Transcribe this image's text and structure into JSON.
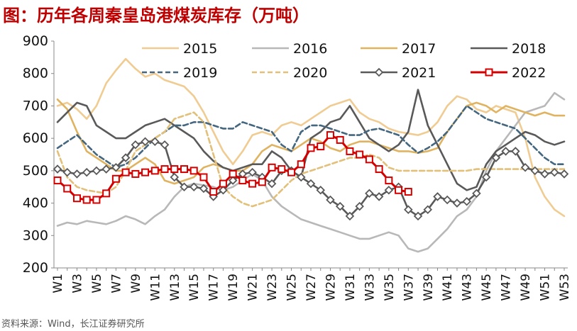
{
  "title": "图：历年各周秦皇岛港煤炭库存（万吨）",
  "source": "资料来源：Wind，长江证券研究所",
  "chart_data": {
    "type": "line",
    "title": "图：历年各周秦皇岛港煤炭库存（万吨）",
    "xlabel": "",
    "ylabel": "",
    "ylim": [
      200,
      900
    ],
    "yticks": [
      200,
      300,
      400,
      500,
      600,
      700,
      800,
      900
    ],
    "x": [
      "W1",
      "W2",
      "W3",
      "W4",
      "W5",
      "W6",
      "W7",
      "W8",
      "W9",
      "W10",
      "W11",
      "W12",
      "W13",
      "W14",
      "W15",
      "W16",
      "W17",
      "W18",
      "W19",
      "W20",
      "W21",
      "W22",
      "W23",
      "W24",
      "W25",
      "W26",
      "W27",
      "W28",
      "W29",
      "W30",
      "W31",
      "W32",
      "W33",
      "W34",
      "W35",
      "W36",
      "W37",
      "W38",
      "W39",
      "W40",
      "W41",
      "W42",
      "W43",
      "W44",
      "W45",
      "W46",
      "W47",
      "W48",
      "W49",
      "W50",
      "W51",
      "W52",
      "W53"
    ],
    "xtick_labels": [
      "W1",
      "W3",
      "W5",
      "W7",
      "W9",
      "W11",
      "W13",
      "W15",
      "W17",
      "W19",
      "W21",
      "W23",
      "W25",
      "W27",
      "W29",
      "W31",
      "W33",
      "W35",
      "W37",
      "W39",
      "W41",
      "W43",
      "W45",
      "W47",
      "W49",
      "W51",
      "W53"
    ],
    "grid": false,
    "legend_position": "top",
    "series": [
      {
        "name": "2015",
        "color": "#f0cc92",
        "dash": "solid",
        "marker": "none",
        "values": [
          700,
          710,
          690,
          660,
          700,
          770,
          810,
          845,
          815,
          790,
          800,
          780,
          770,
          760,
          730,
          680,
          620,
          560,
          520,
          560,
          610,
          620,
          610,
          640,
          650,
          640,
          660,
          680,
          700,
          710,
          720,
          680,
          660,
          650,
          630,
          620,
          615,
          610,
          620,
          650,
          700,
          730,
          720,
          690,
          680,
          700,
          690,
          680,
          600,
          480,
          420,
          380,
          360
        ]
      },
      {
        "name": "2016",
        "color": "#b8b8b8",
        "dash": "solid",
        "marker": "none",
        "values": [
          330,
          340,
          335,
          345,
          340,
          335,
          345,
          360,
          350,
          335,
          360,
          380,
          420,
          450,
          460,
          455,
          450,
          440,
          450,
          470,
          490,
          470,
          420,
          390,
          370,
          350,
          340,
          330,
          320,
          310,
          300,
          290,
          290,
          300,
          310,
          300,
          260,
          250,
          260,
          290,
          320,
          360,
          380,
          420,
          500,
          560,
          600,
          640,
          680,
          690,
          700,
          740,
          720
        ]
      },
      {
        "name": "2017",
        "color": "#e0b360",
        "dash": "solid",
        "marker": "none",
        "values": [
          720,
          690,
          620,
          560,
          540,
          520,
          500,
          500,
          520,
          540,
          520,
          470,
          460,
          470,
          480,
          510,
          520,
          510,
          500,
          500,
          520,
          560,
          580,
          570,
          560,
          580,
          600,
          590,
          570,
          560,
          580,
          590,
          590,
          580,
          570,
          560,
          560,
          555,
          560,
          570,
          620,
          660,
          700,
          710,
          700,
          680,
          700,
          690,
          680,
          670,
          680,
          670,
          670
        ]
      },
      {
        "name": "2018",
        "color": "#595959",
        "dash": "solid",
        "marker": "none",
        "values": [
          650,
          680,
          710,
          700,
          640,
          620,
          600,
          600,
          620,
          640,
          650,
          660,
          640,
          620,
          600,
          560,
          530,
          510,
          500,
          510,
          520,
          520,
          560,
          540,
          500,
          480,
          600,
          620,
          650,
          660,
          700,
          650,
          600,
          580,
          560,
          580,
          620,
          750,
          640,
          580,
          520,
          460,
          440,
          450,
          520,
          560,
          580,
          600,
          620,
          610,
          590,
          580,
          590
        ]
      },
      {
        "name": "2019",
        "color": "#44677f",
        "dash": "dash",
        "marker": "none",
        "values": [
          570,
          590,
          610,
          580,
          550,
          530,
          510,
          520,
          540,
          570,
          600,
          620,
          640,
          640,
          650,
          650,
          640,
          630,
          630,
          650,
          640,
          630,
          620,
          580,
          560,
          620,
          640,
          640,
          630,
          620,
          610,
          610,
          625,
          630,
          620,
          610,
          580,
          555,
          570,
          590,
          620,
          660,
          700,
          680,
          660,
          650,
          640,
          630,
          600,
          570,
          540,
          520,
          520
        ]
      },
      {
        "name": "2020",
        "color": "#e2c07a",
        "dash": "dash",
        "marker": "none",
        "values": [
          560,
          480,
          450,
          440,
          435,
          430,
          450,
          500,
          560,
          580,
          600,
          620,
          660,
          670,
          680,
          650,
          550,
          450,
          420,
          400,
          390,
          400,
          410,
          440,
          470,
          490,
          500,
          510,
          520,
          530,
          540,
          540,
          550,
          540,
          510,
          500,
          500,
          500,
          500,
          500,
          500,
          500,
          500,
          505,
          505,
          505,
          505,
          505,
          505,
          505,
          505,
          505,
          505
        ]
      },
      {
        "name": "2021",
        "color": "#595959",
        "dash": "solid",
        "marker": "diamond",
        "values": [
          505,
          495,
          490,
          495,
          500,
          505,
          510,
          540,
          580,
          590,
          590,
          580,
          480,
          450,
          450,
          445,
          420,
          440,
          470,
          490,
          495,
          480,
          460,
          500,
          500,
          480,
          460,
          440,
          410,
          390,
          360,
          390,
          430,
          420,
          440,
          450,
          380,
          360,
          380,
          420,
          410,
          400,
          405,
          430,
          480,
          540,
          560,
          560,
          510,
          500,
          490,
          495,
          490
        ]
      },
      {
        "name": "2022",
        "color": "#d40000",
        "dash": "solid",
        "marker": "square",
        "values": [
          470,
          445,
          415,
          410,
          410,
          430,
          475,
          495,
          490,
          495,
          500,
          505,
          505,
          505,
          500,
          480,
          435,
          460,
          490,
          470,
          460,
          465,
          510,
          505,
          495,
          520,
          570,
          575,
          610,
          595,
          560,
          550,
          535,
          505,
          470,
          440,
          435,
          null,
          null,
          null,
          null,
          null,
          null,
          null,
          null,
          null,
          null,
          null,
          null,
          null,
          null,
          null,
          null
        ]
      }
    ]
  }
}
